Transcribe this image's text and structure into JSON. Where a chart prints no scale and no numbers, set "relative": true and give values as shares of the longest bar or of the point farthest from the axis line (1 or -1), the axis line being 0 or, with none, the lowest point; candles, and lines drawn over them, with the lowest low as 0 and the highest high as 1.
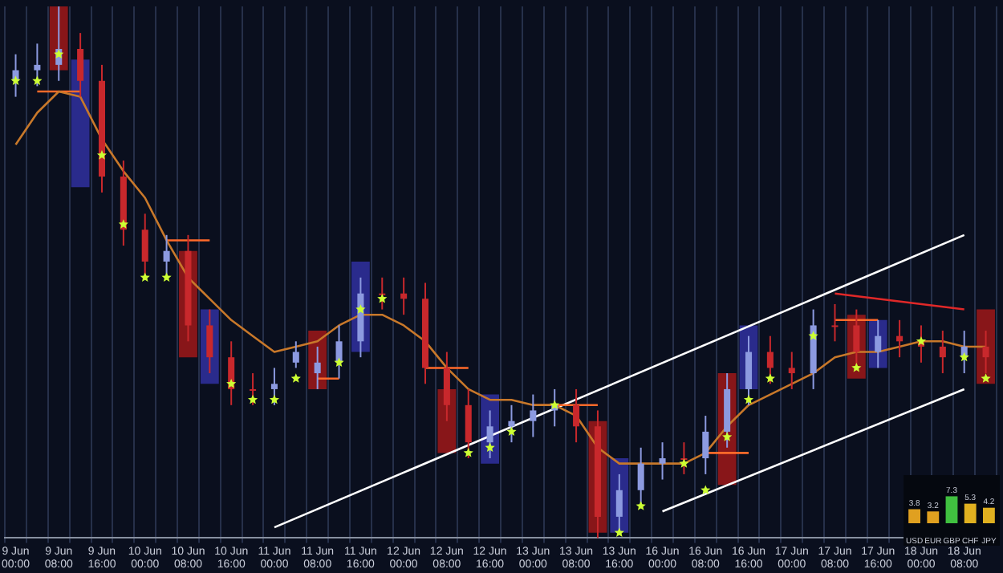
{
  "chart_data": [
    {
      "type": "candlestick",
      "relative": true,
      "legend": false,
      "grid": "x",
      "marker": "none",
      "categories": [
        "9 Jun 00:00",
        null,
        "9 Jun 08:00",
        null,
        "9 Jun 16:00",
        null,
        "10 Jun 00:00",
        null,
        "10 Jun 08:00",
        null,
        "10 Jun 16:00",
        null,
        "11 Jun 00:00",
        null,
        "11 Jun 08:00",
        null,
        "11 Jun 16:00",
        null,
        "12 Jun 00:00",
        null,
        "12 Jun 08:00",
        null,
        "12 Jun 16:00",
        null,
        "13 Jun 00:00",
        null,
        "13 Jun 08:00",
        null,
        "13 Jun 16:00",
        null,
        "16 Jun 00:00",
        null,
        "16 Jun 08:00",
        null,
        "16 Jun 16:00",
        null,
        "17 Jun 00:00",
        null,
        "17 Jun 08:00",
        null,
        "17 Jun 16:00",
        null,
        "18 Jun 00:00",
        null,
        "18 Jun 08:00",
        null
      ],
      "ohlc": [
        [
          0.86,
          0.91,
          0.83,
          0.88
        ],
        [
          0.88,
          0.93,
          0.85,
          0.89
        ],
        [
          0.89,
          1.0,
          0.86,
          0.92
        ],
        [
          0.92,
          0.95,
          0.83,
          0.86
        ],
        [
          0.86,
          0.89,
          0.65,
          0.68
        ],
        [
          0.68,
          0.71,
          0.55,
          0.58
        ],
        [
          0.58,
          0.61,
          0.49,
          0.52
        ],
        [
          0.52,
          0.57,
          0.49,
          0.54
        ],
        [
          0.54,
          0.57,
          0.37,
          0.4
        ],
        [
          0.4,
          0.43,
          0.31,
          0.34
        ],
        [
          0.34,
          0.37,
          0.25,
          0.28
        ],
        [
          0.28,
          0.31,
          0.25,
          0.28
        ],
        [
          0.28,
          0.32,
          0.25,
          0.29
        ],
        [
          0.33,
          0.37,
          0.32,
          0.35
        ],
        [
          0.31,
          0.36,
          0.28,
          0.33
        ],
        [
          0.33,
          0.4,
          0.3,
          0.37
        ],
        [
          0.37,
          0.49,
          0.34,
          0.46
        ],
        [
          0.46,
          0.49,
          0.43,
          0.46
        ],
        [
          0.46,
          0.49,
          0.42,
          0.45
        ],
        [
          0.45,
          0.48,
          0.29,
          0.32
        ],
        [
          0.32,
          0.35,
          0.22,
          0.25
        ],
        [
          0.25,
          0.28,
          0.15,
          0.18
        ],
        [
          0.18,
          0.24,
          0.15,
          0.21
        ],
        [
          0.21,
          0.25,
          0.18,
          0.22
        ],
        [
          0.22,
          0.27,
          0.19,
          0.24
        ],
        [
          0.24,
          0.28,
          0.21,
          0.25
        ],
        [
          0.25,
          0.28,
          0.18,
          0.21
        ],
        [
          0.21,
          0.24,
          0.0,
          0.04
        ],
        [
          0.04,
          0.12,
          0.01,
          0.09
        ],
        [
          0.09,
          0.17,
          0.06,
          0.14
        ],
        [
          0.14,
          0.18,
          0.11,
          0.15
        ],
        [
          0.15,
          0.18,
          0.12,
          0.15
        ],
        [
          0.15,
          0.23,
          0.12,
          0.2
        ],
        [
          0.2,
          0.31,
          0.17,
          0.28
        ],
        [
          0.28,
          0.38,
          0.25,
          0.35
        ],
        [
          0.35,
          0.38,
          0.29,
          0.32
        ],
        [
          0.32,
          0.35,
          0.28,
          0.31
        ],
        [
          0.31,
          0.43,
          0.28,
          0.4
        ],
        [
          0.4,
          0.44,
          0.37,
          0.4
        ],
        [
          0.4,
          0.43,
          0.32,
          0.35
        ],
        [
          0.35,
          0.41,
          0.32,
          0.38
        ],
        [
          0.38,
          0.41,
          0.34,
          0.37
        ],
        [
          0.37,
          0.4,
          0.33,
          0.36
        ],
        [
          0.36,
          0.39,
          0.31,
          0.34
        ],
        [
          0.34,
          0.39,
          0.31,
          0.36
        ],
        [
          0.36,
          0.39,
          0.31,
          0.34
        ]
      ],
      "colors": [
        "#8c9ae0",
        "#8c9ae0",
        "#8c9ae0",
        "#c8282c",
        "#c8282c",
        "#c8282c",
        "#c8282c",
        "#8c9ae0",
        "#c8282c",
        "#c8282c",
        "#c8282c",
        "#c8282c",
        "#8c9ae0",
        "#8c9ae0",
        "#8c9ae0",
        "#8c9ae0",
        "#8c9ae0",
        "#c8282c",
        "#c8282c",
        "#c8282c",
        "#c8282c",
        "#c8282c",
        "#8c9ae0",
        "#8c9ae0",
        "#8c9ae0",
        "#8c9ae0",
        "#c8282c",
        "#c8282c",
        "#8c9ae0",
        "#8c9ae0",
        "#8c9ae0",
        "#c8282c",
        "#8c9ae0",
        "#8c9ae0",
        "#8c9ae0",
        "#c8282c",
        "#c8282c",
        "#8c9ae0",
        "#c8282c",
        "#c8282c",
        "#8c9ae0",
        "#c8282c",
        "#c8282c",
        "#c8282c",
        "#8c9ae0",
        "#c8282c"
      ],
      "series": [
        {
          "type": "bar",
          "color": "#a81818",
          "values": [
            null,
            null,
            0.12,
            null,
            null,
            null,
            null,
            null,
            0.2,
            null,
            null,
            null,
            null,
            null,
            0.11,
            null,
            null,
            null,
            null,
            null,
            0.12,
            null,
            null,
            null,
            null,
            null,
            null,
            0.21,
            null,
            null,
            null,
            null,
            null,
            0.21,
            null,
            null,
            null,
            null,
            null,
            0.12,
            null,
            null,
            null,
            null,
            null,
            0.14
          ],
          "base": [
            null,
            null,
            0.88,
            null,
            null,
            null,
            null,
            null,
            0.34,
            null,
            null,
            null,
            null,
            null,
            0.28,
            null,
            null,
            null,
            null,
            null,
            0.16,
            null,
            null,
            null,
            null,
            null,
            null,
            0.01,
            null,
            null,
            null,
            null,
            null,
            0.1,
            null,
            null,
            null,
            null,
            null,
            0.3,
            null,
            null,
            null,
            null,
            null,
            0.29
          ]
        },
        {
          "type": "bar",
          "color": "#3232a8",
          "values": [
            null,
            null,
            null,
            0.24,
            null,
            null,
            null,
            null,
            null,
            0.14,
            null,
            null,
            null,
            null,
            null,
            null,
            0.17,
            null,
            null,
            null,
            null,
            null,
            0.13,
            null,
            null,
            null,
            null,
            null,
            0.14,
            null,
            null,
            null,
            null,
            null,
            0.12,
            null,
            null,
            null,
            null,
            null,
            0.09,
            null,
            null,
            null,
            null,
            null
          ],
          "base": [
            null,
            null,
            null,
            0.66,
            null,
            null,
            null,
            null,
            null,
            0.29,
            null,
            null,
            null,
            null,
            null,
            null,
            0.35,
            null,
            null,
            null,
            null,
            null,
            0.14,
            null,
            null,
            null,
            null,
            null,
            0.01,
            null,
            null,
            null,
            null,
            null,
            0.28,
            null,
            null,
            null,
            null,
            null,
            0.32,
            null,
            null,
            null,
            null,
            null
          ]
        },
        {
          "type": "line",
          "color": "#c8782a",
          "values": [
            0.74,
            0.8,
            0.84,
            0.83,
            0.75,
            0.69,
            0.64,
            0.56,
            0.49,
            0.45,
            0.41,
            0.38,
            0.35,
            0.36,
            0.37,
            0.4,
            0.42,
            0.42,
            0.4,
            0.37,
            0.32,
            0.28,
            0.26,
            0.26,
            0.25,
            0.25,
            0.23,
            0.17,
            0.14,
            0.14,
            0.14,
            0.14,
            0.16,
            0.21,
            0.25,
            0.27,
            0.29,
            0.31,
            0.34,
            0.35,
            0.35,
            0.36,
            0.37,
            0.37,
            0.36,
            0.36
          ]
        },
        {
          "type": "line",
          "color": "#ff6a2a",
          "values": [
            null,
            0.84,
            0.84,
            0.84,
            null,
            null,
            null,
            0.56,
            0.56,
            0.56,
            null,
            null,
            null,
            null,
            0.3,
            0.3,
            null,
            null,
            null,
            0.32,
            0.32,
            0.32,
            null,
            null,
            0.25,
            0.25,
            0.25,
            0.25,
            null,
            null,
            null,
            null,
            0.16,
            0.16,
            0.16,
            null,
            null,
            null,
            0.41,
            0.41,
            0.41,
            null,
            null,
            null,
            null,
            null
          ]
        },
        {
          "type": "line",
          "color": "#ffffff",
          "x": [
            "11 Jun 00:00",
            "18 Jun 08:00"
          ],
          "values": [
            0.02,
            0.57
          ]
        },
        {
          "type": "line",
          "color": "#ffffff",
          "x": [
            "16 Jun 00:00",
            "18 Jun 08:00"
          ],
          "values": [
            0.05,
            0.28
          ]
        },
        {
          "type": "line",
          "color": "#e02828",
          "x": [
            "17 Jun 08:00",
            "18 Jun 08:00"
          ],
          "values": [
            0.46,
            0.43
          ]
        },
        {
          "type": "scatter",
          "color": "#ccff33",
          "marker": "star",
          "values": [
            0.86,
            0.86,
            0.91,
            null,
            0.72,
            0.59,
            0.49,
            0.49,
            null,
            null,
            0.29,
            0.26,
            0.26,
            0.3,
            null,
            0.33,
            0.43,
            0.45,
            null,
            null,
            null,
            0.16,
            0.17,
            0.2,
            null,
            0.25,
            null,
            null,
            0.01,
            0.06,
            null,
            0.14,
            0.09,
            0.19,
            0.26,
            0.3,
            null,
            0.38,
            null,
            0.32,
            null,
            null,
            0.37,
            null,
            0.34,
            0.3
          ]
        }
      ]
    },
    {
      "type": "bar",
      "legend": false,
      "tick_labels": "x",
      "data_labels": true,
      "categories": [
        "USD",
        "EUR",
        "GBP",
        "CHF",
        "JPY"
      ],
      "values": [
        3.8,
        3.2,
        7.3,
        5.3,
        4.2
      ],
      "colors": [
        "#e0a020",
        "#e0a020",
        "#40c040",
        "#e0b020",
        "#e0b020"
      ]
    }
  ]
}
